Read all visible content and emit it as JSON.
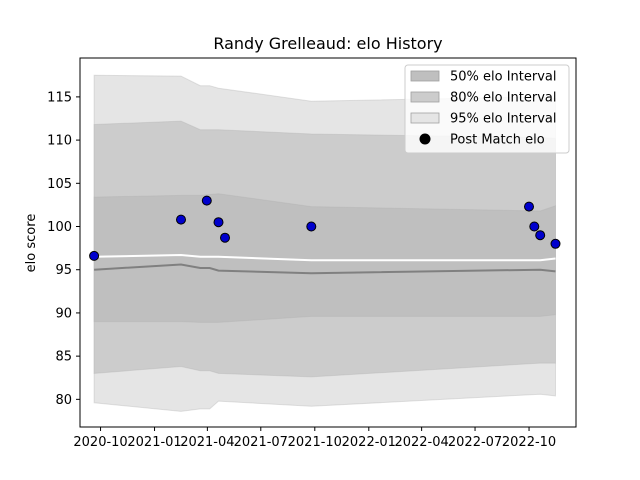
{
  "chart_data": {
    "type": "line",
    "title": "Randy Grelleaud: elo History",
    "xlabel": "",
    "ylabel": "elo score",
    "xlim": [
      "2020-08-27",
      "2022-12-20"
    ],
    "ylim": [
      76.8,
      119.5
    ],
    "x_ticks": [
      "2020-10",
      "2021-01",
      "2021-04",
      "2021-07",
      "2021-10",
      "2022-01",
      "2022-04",
      "2022-07",
      "2022-10"
    ],
    "y_ticks": [
      80,
      85,
      90,
      95,
      100,
      105,
      110,
      115
    ],
    "grid": false,
    "legend": {
      "position": "upper-right",
      "entries": [
        "50% elo Interval",
        "80% elo Interval",
        "95% elo Interval",
        "Post Match elo"
      ]
    },
    "band_x": [
      "2020-09-20",
      "2021-02-15",
      "2021-03-20",
      "2021-04-05",
      "2021-04-20",
      "2021-09-25",
      "2022-10-20",
      "2022-11-15"
    ],
    "series": [
      {
        "name": "95% elo Interval",
        "kind": "band",
        "color": "#e5e5e5",
        "lower": [
          79.6,
          78.6,
          78.9,
          78.9,
          79.8,
          79.2,
          80.6,
          80.4
        ],
        "upper": [
          117.5,
          117.4,
          116.3,
          116.3,
          116.0,
          114.5,
          115.0,
          114.8
        ]
      },
      {
        "name": "80% elo Interval",
        "kind": "band",
        "color": "#cccccc",
        "lower": [
          83.0,
          83.8,
          83.3,
          83.3,
          83.0,
          82.6,
          84.2,
          84.2
        ],
        "upper": [
          111.8,
          112.2,
          111.2,
          111.2,
          111.2,
          110.7,
          110.3,
          110.2
        ]
      },
      {
        "name": "50% elo Interval",
        "kind": "band",
        "color": "#bfbfbf",
        "lower": [
          89.0,
          89.0,
          88.9,
          88.9,
          88.9,
          89.6,
          89.6,
          89.8
        ],
        "upper": [
          103.4,
          103.6,
          103.6,
          103.7,
          103.8,
          102.3,
          101.8,
          102.4
        ]
      },
      {
        "name": "median",
        "kind": "line",
        "color": "#808080",
        "values": [
          95.0,
          95.6,
          95.2,
          95.2,
          94.9,
          94.6,
          95.0,
          94.8
        ]
      },
      {
        "name": "mean",
        "kind": "line",
        "color": "#ffffff",
        "values": [
          96.5,
          96.7,
          96.5,
          96.5,
          96.5,
          96.1,
          96.1,
          96.3
        ]
      },
      {
        "name": "Post Match elo",
        "kind": "scatter",
        "color": "#0000cd",
        "points": [
          [
            "2020-09-20",
            96.6
          ],
          [
            "2021-02-15",
            100.8
          ],
          [
            "2021-03-31",
            103.0
          ],
          [
            "2021-04-20",
            100.5
          ],
          [
            "2021-05-01",
            98.7
          ],
          [
            "2021-09-25",
            100.0
          ],
          [
            "2022-10-01",
            102.3
          ],
          [
            "2022-10-10",
            100.0
          ],
          [
            "2022-10-20",
            99.0
          ],
          [
            "2022-11-15",
            98.0
          ]
        ]
      }
    ]
  }
}
